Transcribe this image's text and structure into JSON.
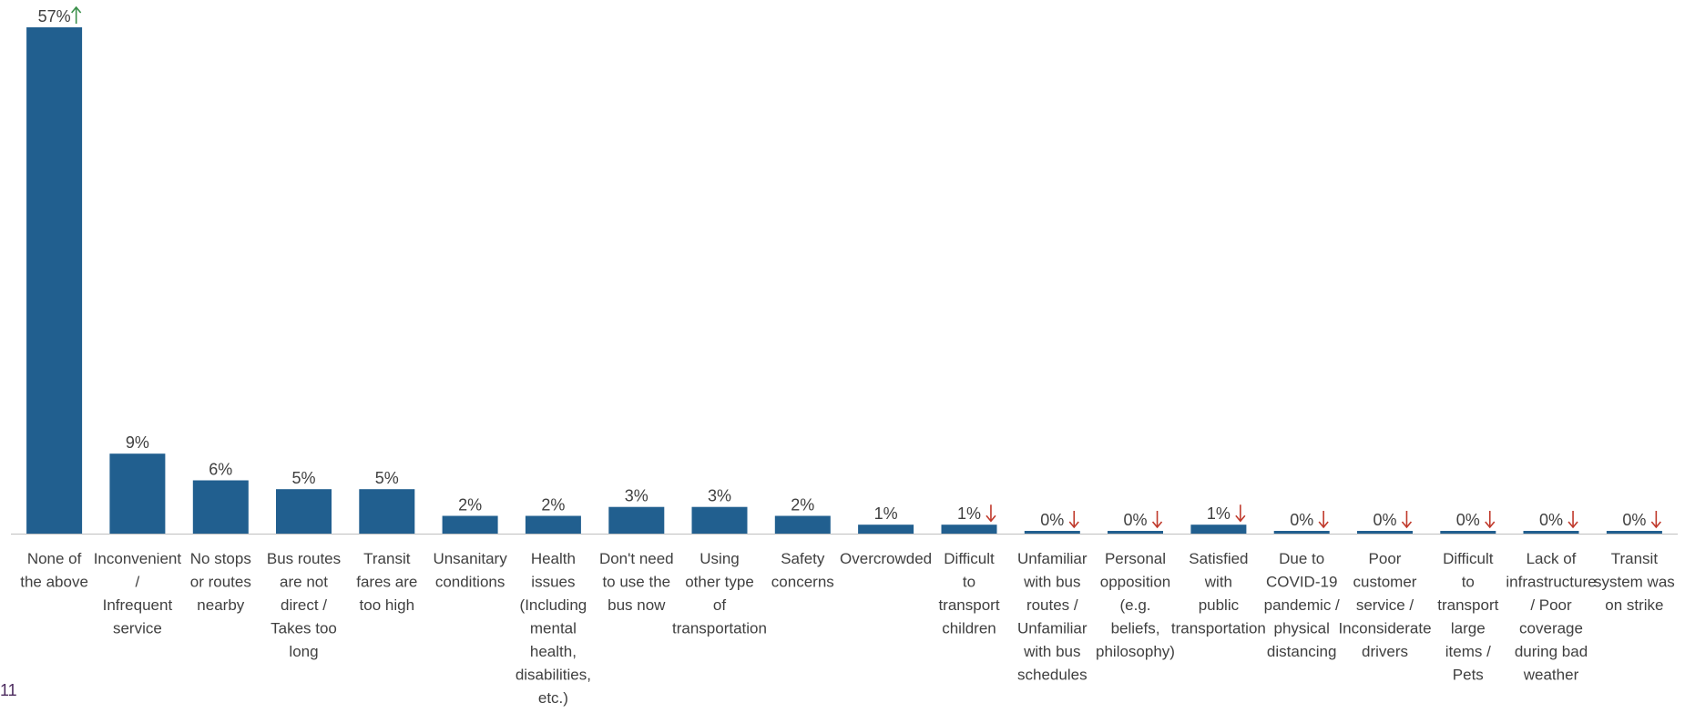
{
  "chart_data": {
    "type": "bar",
    "categories": [
      [
        "None of",
        "the above"
      ],
      [
        "Inconvenient",
        "/",
        "Infrequent",
        "service"
      ],
      [
        "No stops",
        "or routes",
        "nearby"
      ],
      [
        "Bus routes",
        "are not",
        "direct /",
        "Takes too",
        "long"
      ],
      [
        "Transit",
        "fares are",
        "too high"
      ],
      [
        "Unsanitary",
        "conditions"
      ],
      [
        "Health",
        "issues",
        "(Including",
        "mental",
        "health,",
        "disabilities,",
        "etc.)"
      ],
      [
        "Don't need",
        "to use the",
        "bus now"
      ],
      [
        "Using",
        "other type",
        "of",
        "transportation"
      ],
      [
        "Safety",
        "concerns"
      ],
      [
        "Overcrowded"
      ],
      [
        "Difficult",
        "to",
        "transport",
        "children"
      ],
      [
        "Unfamiliar",
        "with bus",
        "routes /",
        "Unfamiliar",
        "with bus",
        "schedules"
      ],
      [
        "Personal",
        "opposition",
        "(e.g.",
        "beliefs,",
        "philosophy)"
      ],
      [
        "Satisfied",
        "with",
        "public",
        "transportation"
      ],
      [
        "Due to",
        "COVID-19",
        "pandemic /",
        "physical",
        "distancing"
      ],
      [
        "Poor",
        "customer",
        "service /",
        "Inconsiderate",
        "drivers"
      ],
      [
        "Difficult",
        "to",
        "transport",
        "large",
        "items /",
        "Pets"
      ],
      [
        "Lack of",
        "infrastructure",
        "/ Poor",
        "coverage",
        "during bad",
        "weather"
      ],
      [
        "Transit",
        "system was",
        "on strike"
      ]
    ],
    "values": [
      57,
      9,
      6,
      5,
      5,
      2,
      2,
      3,
      3,
      2,
      1,
      1,
      0,
      0,
      1,
      0,
      0,
      0,
      0,
      0
    ],
    "labels": [
      "57%",
      "9%",
      "6%",
      "5%",
      "5%",
      "2%",
      "2%",
      "3%",
      "3%",
      "2%",
      "1%",
      "1%",
      "0%",
      "0%",
      "1%",
      "0%",
      "0%",
      "0%",
      "0%",
      "0%"
    ],
    "trend": [
      "up",
      "",
      "",
      "",
      "",
      "",
      "",
      "",
      "",
      "",
      "",
      "down",
      "down",
      "down",
      "down",
      "down",
      "down",
      "down",
      "down",
      "down"
    ],
    "ylim": [
      0,
      57
    ],
    "grid": false,
    "legend": "none",
    "title": "",
    "xlabel": "",
    "ylabel": ""
  },
  "colors": {
    "bar": "#215f8f",
    "axis": "#bfbfbf",
    "label_text": "#404040",
    "trend_up": "#3a8f4a",
    "trend_down": "#c0392b"
  },
  "page": {
    "number": "11"
  }
}
